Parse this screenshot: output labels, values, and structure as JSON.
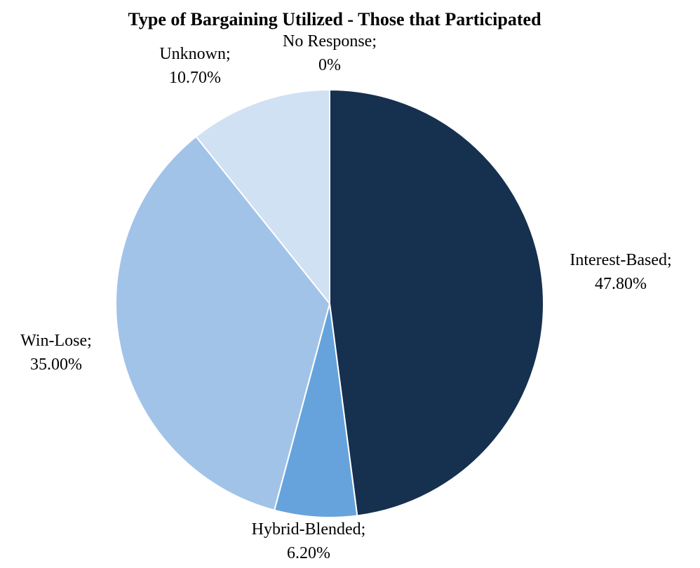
{
  "chart_data": {
    "type": "pie",
    "title": "Type of Bargaining Utilized - Those that Participated",
    "categories": [
      "Interest-Based;",
      "Hybrid-Blended;",
      "Win-Lose;",
      "Unknown;",
      "No Response;"
    ],
    "values": [
      47.8,
      6.2,
      35.0,
      10.7,
      0
    ],
    "value_labels": [
      "47.80%",
      "6.20%",
      "35.00%",
      "10.70%",
      "0%"
    ],
    "colors": [
      "#16304f",
      "#66a3dc",
      "#a2c3e8",
      "#cfe1f3",
      "#e6eef8"
    ]
  }
}
